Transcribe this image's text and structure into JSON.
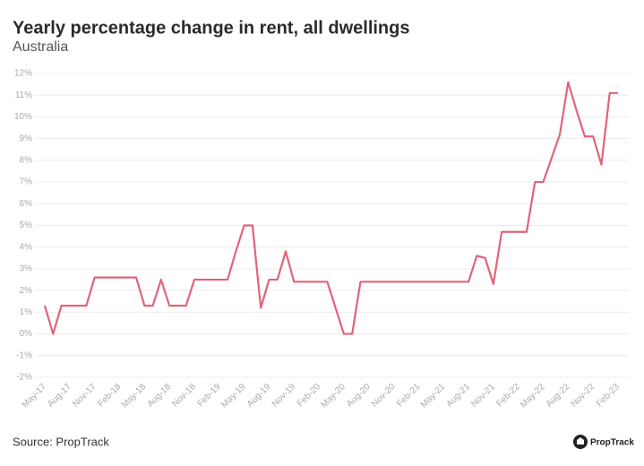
{
  "chart_data": {
    "type": "line",
    "title": "Yearly percentage change in rent, all dwellings",
    "subtitle": "Australia",
    "source": "Source: PropTrack",
    "brand": "PropTrack",
    "categories": [
      "May-17",
      null,
      null,
      "Aug-17",
      null,
      null,
      "Nov-17",
      null,
      null,
      "Feb-18",
      null,
      null,
      "May-18",
      null,
      null,
      "Aug-18",
      null,
      null,
      "Nov-18",
      null,
      null,
      "Feb-19",
      null,
      null,
      "May-19",
      null,
      null,
      "Aug-19",
      null,
      null,
      "Nov-19",
      null,
      null,
      "Feb-20",
      null,
      null,
      "May-20",
      null,
      null,
      "Aug-20",
      null,
      null,
      "Nov-20",
      null,
      null,
      "Feb-21",
      null,
      null,
      "May-21",
      null,
      null,
      "Aug-21",
      null,
      null,
      "Nov-21",
      null,
      null,
      "Feb-22",
      null,
      null,
      "May-22",
      null,
      null,
      "Aug-22",
      null,
      null,
      "Nov-22",
      null,
      null,
      "Feb-23"
    ],
    "series": [
      {
        "name": "All dwellings",
        "color": "#e0647a",
        "values": [
          1.3,
          0.0,
          1.3,
          1.3,
          1.3,
          1.3,
          2.6,
          2.6,
          2.6,
          2.6,
          2.6,
          2.6,
          1.3,
          1.3,
          2.5,
          1.3,
          1.3,
          1.3,
          2.5,
          2.5,
          2.5,
          2.5,
          2.5,
          3.8,
          5.0,
          5.0,
          1.2,
          2.5,
          2.5,
          3.8,
          2.4,
          2.4,
          2.4,
          2.4,
          2.4,
          1.2,
          0.0,
          0.0,
          2.4,
          2.4,
          2.4,
          2.4,
          2.4,
          2.4,
          2.4,
          2.4,
          2.4,
          2.4,
          2.4,
          2.4,
          2.4,
          2.4,
          3.6,
          3.5,
          2.3,
          4.7,
          4.7,
          4.7,
          4.7,
          7.0,
          7.0,
          8.1,
          9.2,
          11.6,
          10.3,
          9.1,
          9.1,
          7.8,
          11.1,
          11.1
        ]
      }
    ],
    "ylim": [
      -2,
      12
    ],
    "yticks": [
      {
        "value": -2,
        "label": "-2%"
      },
      {
        "value": -1,
        "label": "-1%"
      },
      {
        "value": 0,
        "label": "0%"
      },
      {
        "value": 1,
        "label": "1%"
      },
      {
        "value": 2,
        "label": "2%"
      },
      {
        "value": 3,
        "label": "3%"
      },
      {
        "value": 4,
        "label": "4%"
      },
      {
        "value": 5,
        "label": "5%"
      },
      {
        "value": 6,
        "label": "6%"
      },
      {
        "value": 7,
        "label": "7%"
      },
      {
        "value": 8,
        "label": "8%"
      },
      {
        "value": 9,
        "label": "9%"
      },
      {
        "value": 10,
        "label": "10%"
      },
      {
        "value": 11,
        "label": "11%"
      },
      {
        "value": 12,
        "label": "12%"
      }
    ],
    "grid": true
  }
}
